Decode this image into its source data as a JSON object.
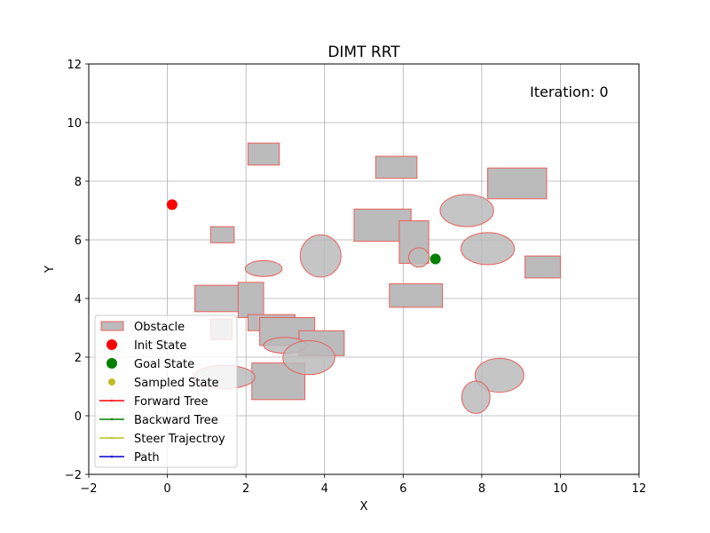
{
  "chart_data": {
    "type": "scatter",
    "title": "DIMT RRT",
    "xlabel": "X",
    "ylabel": "Y",
    "xlim": [
      -2,
      12
    ],
    "ylim": [
      -2,
      12
    ],
    "xticks": [
      -2,
      0,
      2,
      4,
      6,
      8,
      10,
      12
    ],
    "yticks": [
      -2,
      0,
      2,
      4,
      6,
      8,
      10,
      12
    ],
    "xtick_labels": [
      "−2",
      "0",
      "2",
      "4",
      "6",
      "8",
      "10",
      "12"
    ],
    "ytick_labels": [
      "−2",
      "0",
      "2",
      "4",
      "6",
      "8",
      "10",
      "12"
    ],
    "grid": true,
    "annotation": {
      "text": "Iteration: 0",
      "color": "#0000ff"
    },
    "colors": {
      "obstacle_fill": "#bbbbbb",
      "obstacle_edge": "#e8605c",
      "init": "#ff0000",
      "goal": "#008000",
      "sampled": "#bcbd22",
      "forward_tree": "#ff0000",
      "backward_tree": "#008000",
      "steer": "#bcbd22",
      "path": "#0000cd"
    },
    "init_state": {
      "x": 0.12,
      "y": 7.2
    },
    "goal_state": {
      "x": 6.82,
      "y": 5.35
    },
    "rect_obstacles": [
      {
        "x": 2.05,
        "y": 8.55,
        "w": 0.8,
        "h": 0.75
      },
      {
        "x": 5.3,
        "y": 8.1,
        "w": 1.05,
        "h": 0.75
      },
      {
        "x": 8.15,
        "y": 7.4,
        "w": 1.5,
        "h": 1.05
      },
      {
        "x": 1.1,
        "y": 5.9,
        "w": 0.6,
        "h": 0.55
      },
      {
        "x": 4.75,
        "y": 5.95,
        "w": 1.45,
        "h": 1.1
      },
      {
        "x": 5.9,
        "y": 5.2,
        "w": 0.75,
        "h": 1.45
      },
      {
        "x": 9.1,
        "y": 4.7,
        "w": 0.9,
        "h": 0.75
      },
      {
        "x": 5.65,
        "y": 3.7,
        "w": 1.35,
        "h": 0.8
      },
      {
        "x": 0.7,
        "y": 3.55,
        "w": 1.3,
        "h": 0.9
      },
      {
        "x": 1.8,
        "y": 3.35,
        "w": 0.65,
        "h": 1.2
      },
      {
        "x": 2.05,
        "y": 2.9,
        "w": 1.2,
        "h": 0.55
      },
      {
        "x": 2.35,
        "y": 2.4,
        "w": 1.4,
        "h": 0.95
      },
      {
        "x": 3.35,
        "y": 2.05,
        "w": 1.15,
        "h": 0.85
      },
      {
        "x": 1.1,
        "y": 2.6,
        "w": 0.55,
        "h": 0.7
      },
      {
        "x": 2.15,
        "y": 0.55,
        "w": 1.35,
        "h": 1.25
      }
    ],
    "ellipse_obstacles": [
      {
        "cx": 7.62,
        "cy": 7.0,
        "rx": 0.68,
        "ry": 0.55
      },
      {
        "cx": 3.9,
        "cy": 5.45,
        "rx": 0.52,
        "ry": 0.72
      },
      {
        "cx": 2.45,
        "cy": 5.02,
        "rx": 0.47,
        "ry": 0.27
      },
      {
        "cx": 8.15,
        "cy": 5.7,
        "rx": 0.68,
        "ry": 0.55
      },
      {
        "cx": 6.4,
        "cy": 5.4,
        "rx": 0.26,
        "ry": 0.33
      },
      {
        "cx": 3.0,
        "cy": 2.4,
        "rx": 0.55,
        "ry": 0.27
      },
      {
        "cx": 3.6,
        "cy": 1.98,
        "rx": 0.66,
        "ry": 0.58
      },
      {
        "cx": 1.45,
        "cy": 1.32,
        "rx": 0.78,
        "ry": 0.4
      },
      {
        "cx": 8.45,
        "cy": 1.38,
        "rx": 0.62,
        "ry": 0.58
      },
      {
        "cx": 7.85,
        "cy": 0.63,
        "rx": 0.36,
        "ry": 0.55
      }
    ],
    "legend": {
      "placement": "lower-left",
      "entries": [
        {
          "label": "Obstacle",
          "kind": "patch",
          "color_key": "obstacle_fill"
        },
        {
          "label": "Init State",
          "kind": "marker",
          "color_key": "init"
        },
        {
          "label": "Goal State",
          "kind": "marker",
          "color_key": "goal"
        },
        {
          "label": "Sampled State",
          "kind": "small-marker",
          "color_key": "sampled"
        },
        {
          "label": "Forward Tree",
          "kind": "line",
          "color_key": "forward_tree"
        },
        {
          "label": "Backward Tree",
          "kind": "line",
          "color_key": "backward_tree"
        },
        {
          "label": "Steer Trajectroy",
          "kind": "line",
          "color_key": "steer"
        },
        {
          "label": "Path",
          "kind": "line",
          "color_key": "path"
        }
      ]
    }
  }
}
